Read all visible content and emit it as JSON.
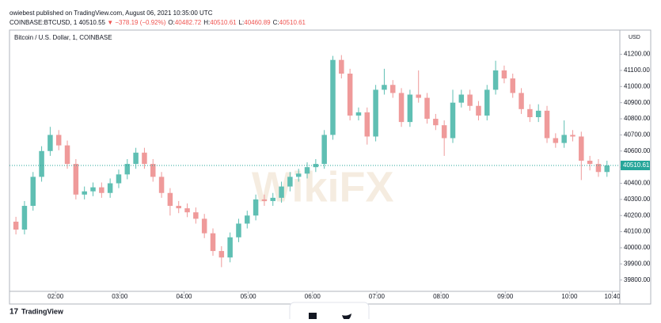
{
  "header": {
    "byline": "owiebest published on TradingView.com, August 06, 2021 10:35:00 UTC",
    "symbol": "COINBASE:BTCUSD, 1",
    "price": "40510.55",
    "change": "▼ −378.19 (−0.92%)",
    "ohlc": [
      {
        "key": "O:",
        "value": "40482.72"
      },
      {
        "key": "H:",
        "value": "40510.61"
      },
      {
        "key": "L:",
        "value": "40460.89"
      },
      {
        "key": "C:",
        "value": "40510.61"
      }
    ]
  },
  "chart_data": {
    "type": "candlestick",
    "title": "Bitcoin / U.S. Dollar, 1, COINBASE",
    "y_unit": "USD",
    "up_color": "#5fbfb3",
    "down_color": "#ef9a9a",
    "last_price": 40510.61,
    "last_price_color": "#26a69a",
    "x": [
      83,
      91,
      99,
      107,
      115,
      123,
      131,
      139,
      147,
      155,
      163,
      171,
      179,
      187,
      195,
      203,
      211,
      219,
      227,
      235,
      243,
      251,
      259,
      267,
      275,
      283,
      291,
      299,
      307,
      315,
      323,
      331,
      339,
      347,
      355,
      363,
      371,
      379,
      387,
      395,
      403,
      411,
      419,
      427,
      435,
      443,
      451,
      459,
      467,
      475,
      483,
      491,
      499,
      507,
      515,
      523,
      531,
      539,
      547,
      555,
      563,
      571,
      579,
      587,
      595,
      603,
      611,
      619,
      627,
      635
    ],
    "open": [
      40162,
      40113,
      40260,
      40440,
      40600,
      40700,
      40635,
      40520,
      40330,
      40350,
      40375,
      40340,
      40400,
      40455,
      40520,
      40590,
      40520,
      40440,
      40340,
      40260,
      40245,
      40220,
      40180,
      40090,
      39980,
      39940,
      40065,
      40150,
      40200,
      40300,
      40290,
      40310,
      40380,
      40440,
      40460,
      40500,
      40520,
      40700,
      41165,
      41080,
      40820,
      40840,
      40690,
      40980,
      41010,
      40960,
      40780,
      40950,
      40930,
      40800,
      40760,
      40680,
      40900,
      40950,
      40880,
      40820,
      40980,
      41100,
      41050,
      40960,
      40860,
      40810,
      40850,
      40680,
      40650,
      40700,
      40690,
      40540,
      40520,
      40470
    ],
    "high": [
      40192,
      40290,
      40470,
      40630,
      40750,
      40730,
      40665,
      40550,
      40380,
      40405,
      40405,
      40430,
      40485,
      40550,
      40620,
      40620,
      40550,
      40470,
      40370,
      40290,
      40275,
      40250,
      40210,
      40120,
      40010,
      40095,
      40180,
      40230,
      40330,
      40330,
      40340,
      40410,
      40470,
      40490,
      40530,
      40550,
      40730,
      41190,
      41195,
      41110,
      40870,
      40870,
      41010,
      41110,
      41040,
      40990,
      40980,
      41100,
      40960,
      40830,
      40790,
      40980,
      40980,
      40980,
      40910,
      41010,
      41160,
      41130,
      41080,
      40990,
      40890,
      40890,
      40880,
      40710,
      40790,
      40730,
      40720,
      40570,
      40550,
      40540
    ],
    "low": [
      40083,
      40083,
      40230,
      40410,
      40570,
      40605,
      40490,
      40300,
      40300,
      40320,
      40310,
      40310,
      40370,
      40425,
      40490,
      40490,
      40410,
      40310,
      40200,
      40215,
      40190,
      40150,
      40060,
      39950,
      39880,
      39910,
      40035,
      40120,
      40170,
      40260,
      40260,
      40280,
      40350,
      40410,
      40430,
      40470,
      40490,
      40670,
      41050,
      40790,
      40790,
      40640,
      40660,
      40950,
      40930,
      40750,
      40750,
      40900,
      40770,
      40730,
      40570,
      40650,
      40870,
      40850,
      40790,
      40790,
      40950,
      41020,
      40930,
      40830,
      40780,
      40780,
      40650,
      40620,
      40620,
      40660,
      40420,
      40480,
      40440,
      40440
    ],
    "close": [
      40113,
      40260,
      40440,
      40600,
      40700,
      40635,
      40520,
      40330,
      40350,
      40375,
      40340,
      40400,
      40455,
      40520,
      40590,
      40520,
      40440,
      40340,
      40260,
      40245,
      40220,
      40180,
      40090,
      39980,
      39940,
      40065,
      40150,
      40200,
      40300,
      40290,
      40310,
      40380,
      40440,
      40460,
      40500,
      40520,
      40700,
      41165,
      41080,
      40820,
      40840,
      40690,
      40980,
      41010,
      40960,
      40780,
      40950,
      40930,
      40800,
      40760,
      40680,
      40900,
      40950,
      40880,
      40820,
      40980,
      41100,
      41050,
      40960,
      40860,
      40810,
      40850,
      40680,
      40650,
      40700,
      40690,
      40540,
      40520,
      40470,
      40510.61
    ],
    "xlim": [
      77,
      647
    ],
    "xticks": [
      {
        "value": 120,
        "label": "02:00"
      },
      {
        "value": 180,
        "label": "03:00"
      },
      {
        "value": 240,
        "label": "04:00"
      },
      {
        "value": 300,
        "label": "05:00"
      },
      {
        "value": 360,
        "label": "06:00"
      },
      {
        "value": 420,
        "label": "07:00"
      },
      {
        "value": 480,
        "label": "08:00"
      },
      {
        "value": 540,
        "label": "09:00"
      },
      {
        "value": 600,
        "label": "10:00"
      },
      {
        "value": 640,
        "label": "10:40"
      }
    ],
    "ylim": [
      39730,
      41350
    ],
    "yticks": [
      {
        "value": 39800,
        "label": "39800.00"
      },
      {
        "value": 39900,
        "label": "39900.00"
      },
      {
        "value": 40000,
        "label": "40000.00"
      },
      {
        "value": 40100,
        "label": "40100.00"
      },
      {
        "value": 40200,
        "label": "40200.00"
      },
      {
        "value": 40300,
        "label": "40300.00"
      },
      {
        "value": 40400,
        "label": "40400.00"
      },
      {
        "value": 40500,
        "label": "40500.00"
      },
      {
        "value": 40600,
        "label": "40600.00"
      },
      {
        "value": 40700,
        "label": "40700.00"
      },
      {
        "value": 40800,
        "label": "40800.00"
      },
      {
        "value": 40900,
        "label": "40900.00"
      },
      {
        "value": 41000,
        "label": "41000.00"
      },
      {
        "value": 41100,
        "label": "41100.00"
      },
      {
        "value": 41200,
        "label": "41200.00"
      }
    ]
  },
  "watermark": "WikiFX",
  "footer": {
    "brand": "TradingView"
  }
}
